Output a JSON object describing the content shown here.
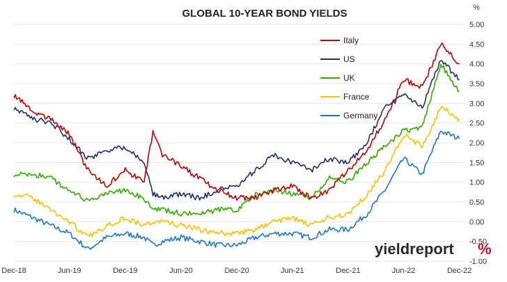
{
  "chart_data": {
    "type": "line",
    "title": "GLOBAL 10-YEAR BOND YIELDS",
    "ylabel": "%",
    "ylim": [
      -1.0,
      5.0
    ],
    "y_ticks": [
      "5.00",
      "4.50",
      "4.00",
      "3.50",
      "3.00",
      "2.50",
      "2.00",
      "1.50",
      "1.00",
      "0.50",
      "0.00",
      "-0.50",
      "-1.00"
    ],
    "y_tick_values": [
      5.0,
      4.5,
      4.0,
      3.5,
      3.0,
      2.5,
      2.0,
      1.5,
      1.0,
      0.5,
      0.0,
      -0.5,
      -1.0
    ],
    "x_ticks": [
      "Dec-18",
      "Jun-19",
      "Dec-19",
      "Jun-20",
      "Dec-20",
      "Jun-21",
      "Dec-21",
      "Jun-22",
      "Dec-22"
    ],
    "x": [
      "2018-12",
      "2019-02",
      "2019-04",
      "2019-06",
      "2019-08",
      "2019-10",
      "2019-12",
      "2020-02",
      "2020-03",
      "2020-04",
      "2020-06",
      "2020-08",
      "2020-10",
      "2020-12",
      "2021-02",
      "2021-04",
      "2021-06",
      "2021-08",
      "2021-10",
      "2021-12",
      "2022-02",
      "2022-04",
      "2022-06",
      "2022-08",
      "2022-10",
      "2022-12"
    ],
    "grid": true,
    "legend_position": "top-right",
    "series": [
      {
        "name": "Italy",
        "color": "#c00000",
        "values": [
          3.2,
          2.8,
          2.6,
          2.2,
          1.3,
          0.9,
          1.3,
          1.0,
          2.3,
          1.7,
          1.4,
          1.1,
          0.8,
          0.6,
          0.6,
          0.8,
          0.9,
          0.6,
          0.8,
          1.3,
          1.8,
          2.6,
          3.6,
          3.4,
          4.5,
          4.0
        ]
      },
      {
        "name": "US",
        "color": "#1f2f6b",
        "values": [
          2.9,
          2.6,
          2.5,
          2.1,
          1.6,
          1.8,
          1.9,
          1.5,
          0.7,
          0.6,
          0.7,
          0.6,
          0.8,
          0.9,
          1.3,
          1.7,
          1.5,
          1.3,
          1.6,
          1.5,
          2.0,
          2.9,
          3.2,
          2.9,
          4.1,
          3.6
        ]
      },
      {
        "name": "UK",
        "color": "#33aa00",
        "values": [
          1.2,
          1.2,
          1.1,
          0.8,
          0.5,
          0.7,
          0.8,
          0.6,
          0.3,
          0.3,
          0.2,
          0.2,
          0.3,
          0.3,
          0.7,
          0.8,
          0.7,
          0.6,
          1.1,
          1.0,
          1.5,
          1.9,
          2.3,
          2.4,
          4.0,
          3.3
        ]
      },
      {
        "name": "France",
        "color": "#ffc000",
        "values": [
          0.7,
          0.6,
          0.3,
          0.0,
          -0.4,
          -0.1,
          0.1,
          -0.1,
          0.0,
          0.0,
          -0.1,
          -0.2,
          -0.3,
          -0.3,
          -0.2,
          0.0,
          0.1,
          -0.1,
          0.1,
          0.2,
          0.7,
          1.3,
          2.2,
          1.9,
          2.9,
          2.6
        ]
      },
      {
        "name": "Germany",
        "color": "#1f77c4",
        "values": [
          0.3,
          0.1,
          -0.1,
          -0.3,
          -0.7,
          -0.4,
          -0.3,
          -0.4,
          -0.6,
          -0.5,
          -0.4,
          -0.5,
          -0.6,
          -0.6,
          -0.4,
          -0.3,
          -0.3,
          -0.4,
          -0.2,
          -0.2,
          0.2,
          0.8,
          1.6,
          1.2,
          2.3,
          2.1
        ]
      }
    ]
  },
  "brand": {
    "light": "yield",
    "bold": "report",
    "pct": "%"
  }
}
